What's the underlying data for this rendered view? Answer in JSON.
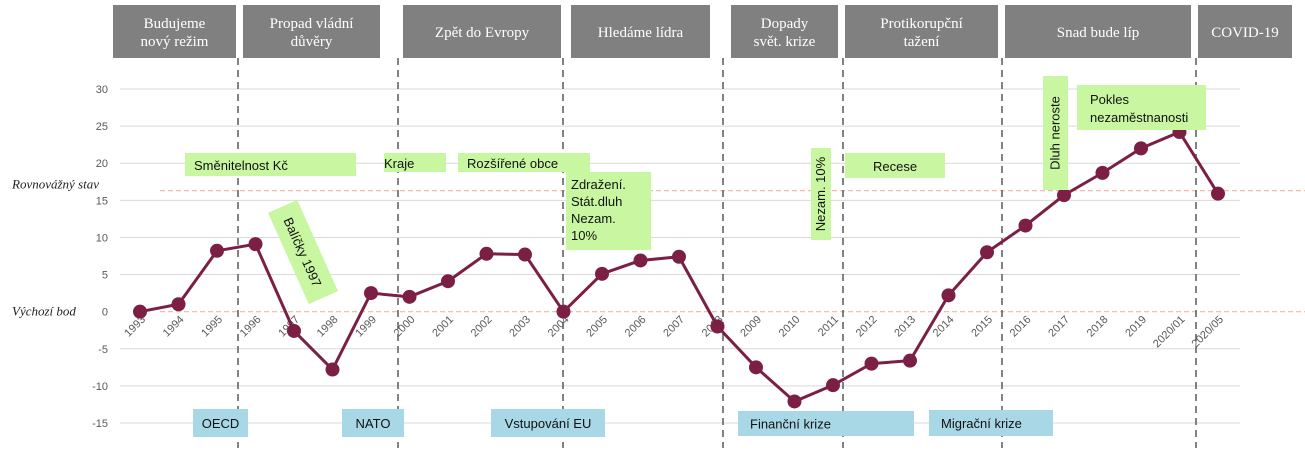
{
  "chart_data": {
    "type": "line",
    "title": "",
    "xlabel": "",
    "ylabel": "",
    "ylim": [
      -15,
      30
    ],
    "yticks": [
      30,
      25,
      20,
      15,
      10,
      5,
      0,
      -5,
      -10,
      -15
    ],
    "grid": true,
    "colors": {
      "line": "#7B1F45",
      "era_box": "#808080",
      "era_separator": "#595959",
      "refline": "#F4B4A4",
      "green_box": "#C9F7A1",
      "blue_box": "#A8D8E6",
      "grid": "#D9D9D9"
    },
    "categories": [
      "1993",
      "1994",
      "1995",
      "1996",
      "1997",
      "1998",
      "1999",
      "2000",
      "2001",
      "2002",
      "2003",
      "2004",
      "2005",
      "2006",
      "2007",
      "2008",
      "2009",
      "2010",
      "2011",
      "2012",
      "2013",
      "2014",
      "2015",
      "2016",
      "2017",
      "2018",
      "2019",
      "2020/01",
      "2020/05"
    ],
    "series": [
      {
        "values": [
          0,
          1,
          8.2,
          9.1,
          -2.6,
          -7.8,
          2.5,
          2.0,
          4.1,
          7.8,
          7.7,
          0,
          5.1,
          6.9,
          7.4,
          -2.0,
          -7.5,
          -12.1,
          -9.9,
          -7.0,
          -6.6,
          2.2,
          8.0,
          11.6,
          15.7,
          18.7,
          22.0,
          24.2,
          15.9
        ]
      }
    ],
    "reference_lines": [
      {
        "label": "Rovnovážný stav",
        "value": 16.3
      },
      {
        "label": "Výchozí bod",
        "value": 0
      }
    ],
    "eras": [
      {
        "label_lines": [
          "Budujeme",
          "nový režim"
        ]
      },
      {
        "label_lines": [
          "Propad vládní",
          "důvěry"
        ]
      },
      {
        "label_lines": [
          "Zpět do Evropy"
        ]
      },
      {
        "label_lines": [
          "Hledáme lídra"
        ]
      },
      {
        "label_lines": [
          "Dopady",
          "svět. krize"
        ]
      },
      {
        "label_lines": [
          "Protikorupční",
          "tažení"
        ]
      },
      {
        "label_lines": [
          "Snad bude líp"
        ]
      },
      {
        "label_lines": [
          "COVID-19"
        ]
      }
    ],
    "green_annotations": [
      {
        "lines": [
          "Směnitelnost Kč"
        ]
      },
      {
        "lines": [
          "Balíčky 1997"
        ]
      },
      {
        "lines": [
          "Kraje"
        ]
      },
      {
        "lines": [
          "Rozšířené obce"
        ]
      },
      {
        "lines": [
          "Zdražení.",
          "Stát.dluh",
          "Nezam.",
          "10%"
        ]
      },
      {
        "lines": [
          "Nezam. 10%"
        ]
      },
      {
        "lines": [
          "Recese"
        ]
      },
      {
        "lines": [
          "Dluh neroste"
        ]
      },
      {
        "lines": [
          "Pokles",
          "nezaměstnanosti"
        ]
      }
    ],
    "blue_annotations": [
      {
        "label": "OECD"
      },
      {
        "label": "NATO"
      },
      {
        "label": "Vstupování EU"
      },
      {
        "label": "Finanční krize"
      },
      {
        "label": "Migrační krize"
      }
    ]
  }
}
